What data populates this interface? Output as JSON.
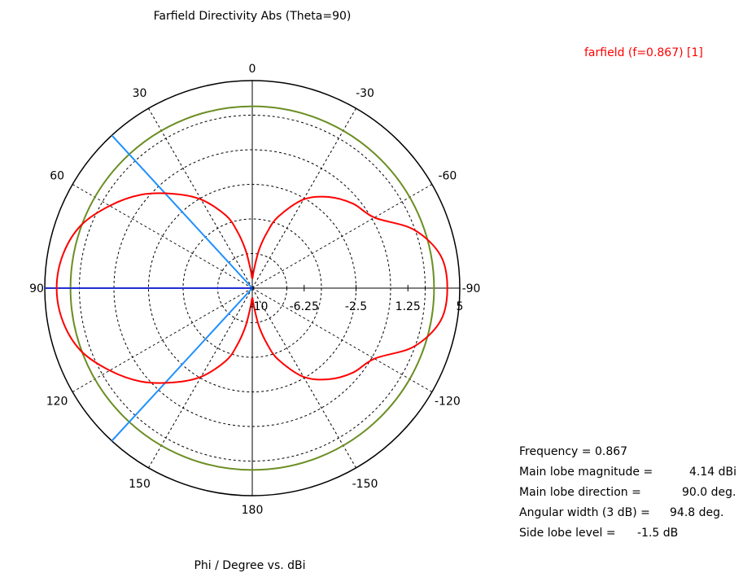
{
  "chart_data": {
    "type": "polar-line",
    "title": "Farfield Directivity Abs (Theta=90)",
    "xlabel": "Phi / Degree vs. dBi",
    "angular_ticks": [
      {
        "angle": 0,
        "label": "0"
      },
      {
        "angle": 30,
        "label": "30"
      },
      {
        "angle": 60,
        "label": "60"
      },
      {
        "angle": 90,
        "label": "90"
      },
      {
        "angle": 120,
        "label": "120"
      },
      {
        "angle": 150,
        "label": "150"
      },
      {
        "angle": 180,
        "label": "180"
      },
      {
        "angle": 210,
        "label": "-150"
      },
      {
        "angle": 240,
        "label": "-120"
      },
      {
        "angle": 270,
        "label": "-90"
      },
      {
        "angle": 300,
        "label": "-60"
      },
      {
        "angle": 330,
        "label": "-30"
      }
    ],
    "radial_range": [
      -10,
      5
    ],
    "radial_ticks": [
      {
        "value": -10,
        "label": "-10"
      },
      {
        "value": -6.25,
        "label": "-6.25"
      },
      {
        "value": -2.5,
        "label": "-2.5"
      },
      {
        "value": 1.25,
        "label": "1.25"
      },
      {
        "value": 5,
        "label": "5"
      }
    ],
    "series": [
      {
        "name": "farfield (f=0.867) [1]",
        "color": "#ff0000",
        "phi": [
          0,
          5,
          10,
          15,
          20,
          30,
          40,
          50,
          60,
          70,
          80,
          90,
          100,
          110,
          120,
          130,
          140,
          150,
          160,
          165,
          170,
          175,
          180,
          185,
          190,
          195,
          200,
          210,
          220,
          230,
          240,
          250,
          260,
          270
        ],
        "dBi": [
          -9.3,
          -8.7,
          -7.2,
          -5.7,
          -4.4,
          -2.6,
          -1.1,
          0.5,
          1.9,
          3.2,
          3.9,
          4.14,
          3.9,
          3.2,
          1.9,
          0.5,
          -1.1,
          -2.6,
          -4.4,
          -5.7,
          -7.2,
          -8.7,
          -9.3,
          -8.7,
          -7.2,
          -5.8,
          -4.5,
          -2.6,
          -1.4,
          -0.5,
          0.2,
          2.4,
          3.8,
          4.1
        ]
      }
    ],
    "reference_circle": {
      "dBi": 3.14,
      "color": "#6b8e23"
    },
    "main_lobe_direction_deg": 90,
    "beamwidth_edges_deg": [
      42.6,
      137.4
    ],
    "marker_color_main": "#1f2fd1",
    "marker_color_beam": "#1e90ff"
  },
  "legend": {
    "label": "farfield (f=0.867) [1]"
  },
  "info": {
    "freq_label": "Frequency = 0.867",
    "mag_label": "Main lobe magnitude =",
    "mag_value": "4.14 dBi",
    "dir_label": "Main lobe direction =",
    "dir_value": "90.0 deg.",
    "width_label": "Angular width (3 dB) =",
    "width_value": "94.8 deg.",
    "side_label": "Side lobe level =",
    "side_value": "-1.5 dB"
  }
}
